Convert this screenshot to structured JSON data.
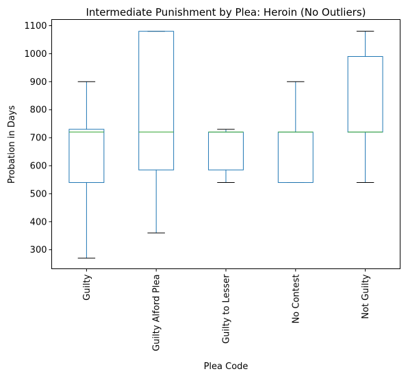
{
  "chart_data": {
    "type": "box",
    "title": "Intermediate Punishment by Plea: Heroin (No Outliers)",
    "xlabel": "Plea Code",
    "ylabel": "Probation in Days",
    "ylim": [
      232,
      1122
    ],
    "yticks": [
      300,
      400,
      500,
      600,
      700,
      800,
      900,
      1000,
      1100
    ],
    "grid": false,
    "colors": {
      "box": "#1f77b4",
      "median": "#2ca02c",
      "whisker": "#1f77b4",
      "cap": "#000000"
    },
    "categories": [
      "Guilty",
      "Guilty Alford Plea",
      "Guilty to Lesser",
      "No Contest",
      "Not Guilty"
    ],
    "boxes": [
      {
        "category": "Guilty",
        "whisker_low": 270,
        "q1": 540,
        "median": 720,
        "q3": 730,
        "whisker_high": 900
      },
      {
        "category": "Guilty Alford Plea",
        "whisker_low": 360,
        "q1": 585,
        "median": 720,
        "q3": 1080,
        "whisker_high": 1080
      },
      {
        "category": "Guilty to Lesser",
        "whisker_low": 540,
        "q1": 585,
        "median": 720,
        "q3": 720,
        "whisker_high": 730
      },
      {
        "category": "No Contest",
        "whisker_low": 540,
        "q1": 540,
        "median": 720,
        "q3": 720,
        "whisker_high": 900
      },
      {
        "category": "Not Guilty",
        "whisker_low": 540,
        "q1": 720,
        "median": 720,
        "q3": 990,
        "whisker_high": 1080
      }
    ]
  }
}
